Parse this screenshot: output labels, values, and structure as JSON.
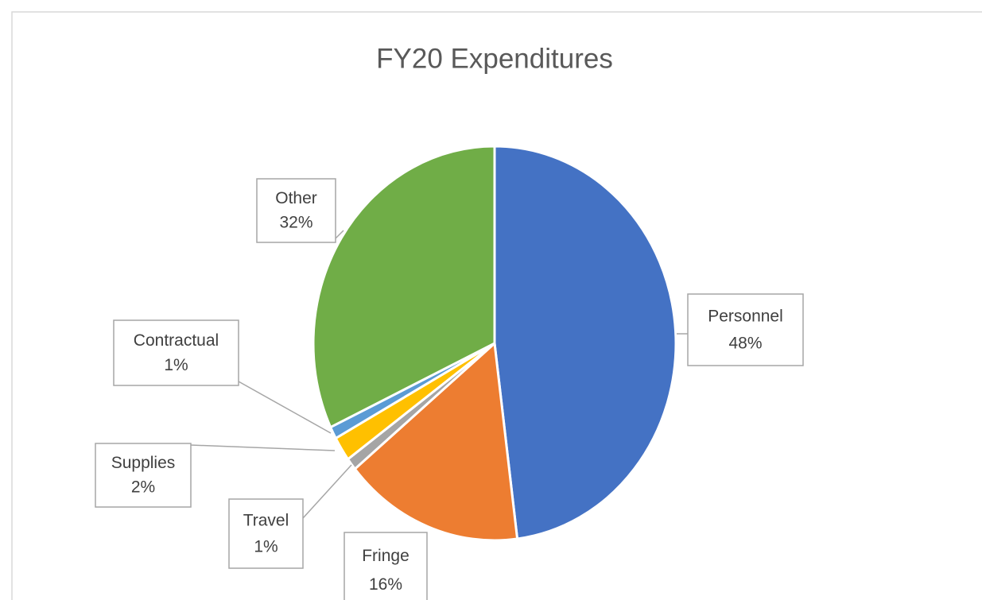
{
  "chart_data": {
    "type": "pie",
    "title": "FY20 Expenditures",
    "categories": [
      "Personnel",
      "Fringe",
      "Travel",
      "Supplies",
      "Contractual",
      "Other"
    ],
    "values": [
      48,
      16,
      1,
      2,
      1,
      32
    ],
    "value_labels": [
      "48%",
      "16%",
      "1%",
      "2%",
      "1%",
      "32%"
    ],
    "colors": [
      "#4472c4",
      "#ed7d31",
      "#a5a5a5",
      "#ffc000",
      "#5b9bd5",
      "#70ad47"
    ]
  }
}
